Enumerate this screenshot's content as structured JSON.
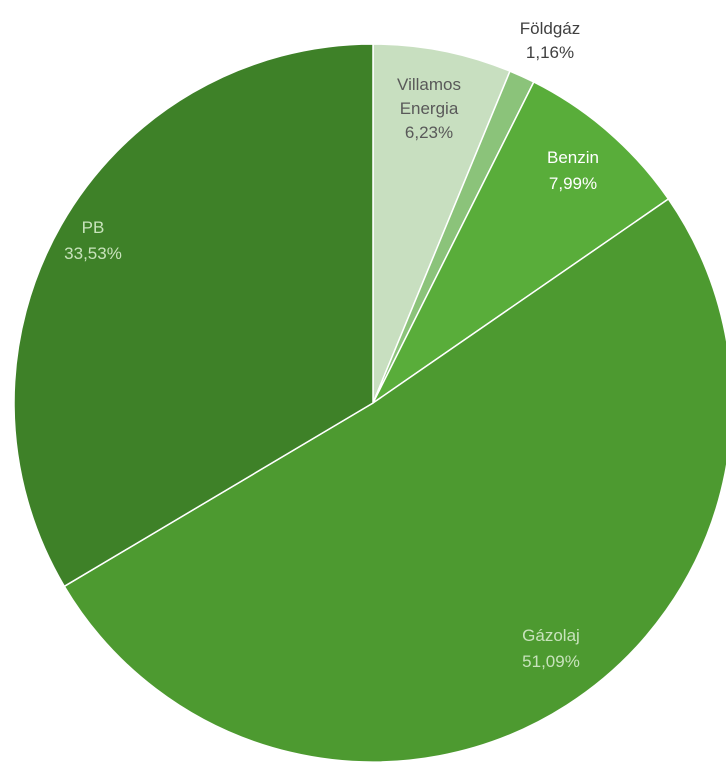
{
  "chart_data": {
    "type": "pie",
    "start_angle_deg": 0,
    "direction": "clockwise",
    "slices": [
      {
        "name": "Villamos Energia",
        "label_lines": [
          "Villamos",
          "Energia"
        ],
        "value": 6.23,
        "label": "6,23%",
        "color": "#c8dfc0",
        "label_color": "#595959",
        "label_placement": "inside"
      },
      {
        "name": "Földgáz",
        "label_lines": [
          "Földgáz"
        ],
        "value": 1.16,
        "label": "1,16%",
        "color": "#8bc37a",
        "label_color": "#404040",
        "label_placement": "outside"
      },
      {
        "name": "Benzin",
        "label_lines": [
          "Benzin"
        ],
        "value": 7.99,
        "label": "7,99%",
        "color": "#59ad3a",
        "label_color": "#ffffff",
        "label_placement": "inside"
      },
      {
        "name": "Gázolaj",
        "label_lines": [
          "Gázolaj"
        ],
        "value": 51.09,
        "label": "51,09%",
        "color": "#4d9a30",
        "label_color": "#c8e3bc",
        "label_placement": "inside"
      },
      {
        "name": "PB",
        "label_lines": [
          "PB"
        ],
        "value": 33.53,
        "label": "33,53%",
        "color": "#3e8128",
        "label_color": "#c8e3bc",
        "label_placement": "inside"
      }
    ],
    "title": "",
    "legend": "none"
  }
}
